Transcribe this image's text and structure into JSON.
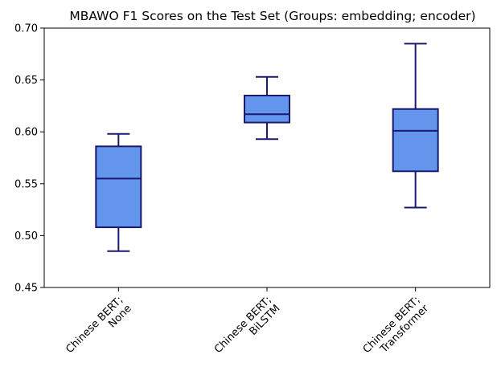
{
  "chart_data": {
    "type": "box",
    "title": "MBAWO F1 Scores on the Test Set (Groups: embedding; encoder)",
    "xlabel": "",
    "ylabel": "",
    "ylim": [
      0.45,
      0.7
    ],
    "yticks": [
      0.45,
      0.5,
      0.55,
      0.6,
      0.65,
      0.7
    ],
    "ytick_labels": [
      "0.45",
      "0.50",
      "0.55",
      "0.60",
      "0.65",
      "0.70"
    ],
    "grid": false,
    "colors": {
      "box_fill": "#6495ED",
      "box_edge": "#191970",
      "axis": "#000000"
    },
    "categories": [
      {
        "line1": "Chinese BERT;",
        "line2": "None"
      },
      {
        "line1": "Chinese BERT;",
        "line2": "BiLSTM"
      },
      {
        "line1": "Chinese BERT;",
        "line2": "Transformer"
      }
    ],
    "boxes": [
      {
        "whisker_low": 0.485,
        "q1": 0.508,
        "median": 0.555,
        "q3": 0.586,
        "whisker_high": 0.598
      },
      {
        "whisker_low": 0.593,
        "q1": 0.609,
        "median": 0.617,
        "q3": 0.635,
        "whisker_high": 0.653
      },
      {
        "whisker_low": 0.527,
        "q1": 0.562,
        "median": 0.601,
        "q3": 0.622,
        "whisker_high": 0.685
      }
    ]
  }
}
